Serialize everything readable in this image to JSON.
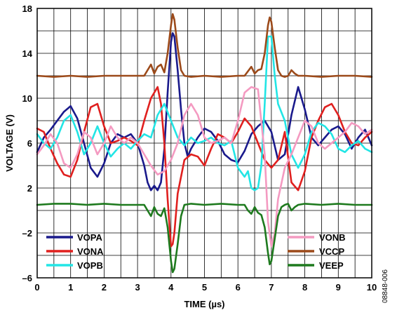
{
  "chart_data": {
    "type": "line",
    "xlabel": "TIME (µs)",
    "ylabel": "VOLTAGE (V)",
    "xlim": [
      0,
      10
    ],
    "ylim": [
      -6,
      18
    ],
    "xticks": [
      "0",
      "1",
      "2",
      "3",
      "4",
      "5",
      "6",
      "7",
      "8",
      "9",
      "10"
    ],
    "yticks": [
      "18",
      "14",
      "10",
      "6",
      "2",
      "–2",
      "–6"
    ],
    "ytick_values": [
      18,
      14,
      10,
      6,
      2,
      -2,
      -6
    ],
    "grid": true,
    "figure_id": "08848-006",
    "legend_left": [
      "VOPA",
      "VONA",
      "VOPB"
    ],
    "legend_right": [
      "VONB",
      "VCCP",
      "VEEP"
    ],
    "series": [
      {
        "name": "VOPA",
        "color": "#1a1a8c",
        "x": [
          0,
          0.2,
          0.4,
          0.6,
          0.8,
          1.0,
          1.2,
          1.4,
          1.6,
          1.8,
          2.0,
          2.2,
          2.4,
          2.6,
          2.8,
          3.0,
          3.2,
          3.3,
          3.4,
          3.5,
          3.6,
          3.7,
          3.8,
          3.9,
          4.0,
          4.05,
          4.1,
          4.2,
          4.3,
          4.4,
          4.5,
          4.6,
          4.8,
          5.0,
          5.2,
          5.4,
          5.6,
          5.8,
          6.0,
          6.2,
          6.4,
          6.6,
          6.8,
          7.0,
          7.2,
          7.4,
          7.6,
          7.8,
          8.0,
          8.2,
          8.4,
          8.6,
          8.8,
          9.0,
          9.2,
          9.4,
          9.6,
          9.8,
          10.0
        ],
        "y": [
          5.2,
          6.5,
          7.2,
          8.0,
          8.8,
          9.3,
          8.2,
          6.0,
          3.8,
          3.0,
          4.2,
          6.0,
          6.8,
          6.5,
          6.8,
          6.0,
          4.0,
          2.5,
          1.8,
          2.2,
          1.8,
          2.5,
          5.5,
          10.5,
          15.0,
          15.8,
          15.5,
          12.5,
          9.0,
          6.0,
          4.8,
          5.5,
          6.5,
          7.3,
          7.0,
          6.2,
          5.0,
          4.5,
          4.3,
          5.3,
          6.8,
          7.5,
          8.0,
          7.0,
          4.5,
          5.0,
          8.5,
          11.0,
          9.0,
          6.5,
          5.8,
          6.5,
          7.2,
          7.5,
          6.8,
          5.5,
          6.5,
          7.2,
          5.8
        ]
      },
      {
        "name": "VONA",
        "color": "#e0201f",
        "x": [
          0,
          0.2,
          0.4,
          0.6,
          0.8,
          1.0,
          1.2,
          1.4,
          1.6,
          1.8,
          2.0,
          2.2,
          2.4,
          2.6,
          2.8,
          3.0,
          3.2,
          3.4,
          3.6,
          3.7,
          3.8,
          3.9,
          4.0,
          4.05,
          4.1,
          4.2,
          4.4,
          4.6,
          4.8,
          5.0,
          5.2,
          5.4,
          5.6,
          5.8,
          6.0,
          6.2,
          6.4,
          6.6,
          6.8,
          7.0,
          7.2,
          7.4,
          7.6,
          7.8,
          8.0,
          8.2,
          8.4,
          8.6,
          8.8,
          9.0,
          9.2,
          9.4,
          9.6,
          9.8,
          10.0
        ],
        "y": [
          7.3,
          7.0,
          5.5,
          4.2,
          3.2,
          3.0,
          4.5,
          7.0,
          9.2,
          9.5,
          7.5,
          6.0,
          6.2,
          6.5,
          6.2,
          5.8,
          8.0,
          10.0,
          11.0,
          9.5,
          6.0,
          1.0,
          -3.2,
          -3.0,
          -2.0,
          1.5,
          4.5,
          5.0,
          4.8,
          4.0,
          5.5,
          6.8,
          6.5,
          6.0,
          7.0,
          8.2,
          7.5,
          6.0,
          4.5,
          3.8,
          4.5,
          7.0,
          2.5,
          1.8,
          3.5,
          6.5,
          8.0,
          9.2,
          9.5,
          8.5,
          7.0,
          6.0,
          5.8,
          6.5,
          7.0
        ]
      },
      {
        "name": "VOPB",
        "color": "#22e5e5",
        "x": [
          0,
          0.2,
          0.4,
          0.6,
          0.8,
          1.0,
          1.2,
          1.4,
          1.6,
          1.8,
          2.0,
          2.2,
          2.4,
          2.6,
          2.8,
          3.0,
          3.2,
          3.4,
          3.6,
          3.8,
          4.0,
          4.2,
          4.4,
          4.6,
          4.8,
          5.0,
          5.2,
          5.4,
          5.6,
          5.8,
          6.0,
          6.2,
          6.3,
          6.4,
          6.5,
          6.6,
          6.7,
          6.8,
          6.9,
          7.0,
          7.1,
          7.2,
          7.4,
          7.6,
          7.8,
          8.0,
          8.2,
          8.4,
          8.6,
          8.8,
          9.0,
          9.2,
          9.4,
          9.6,
          9.8,
          10.0
        ],
        "y": [
          6.8,
          6.0,
          5.5,
          6.5,
          8.0,
          8.5,
          7.0,
          5.0,
          6.0,
          7.5,
          6.0,
          4.8,
          5.5,
          6.0,
          5.5,
          6.2,
          6.8,
          6.5,
          8.5,
          9.5,
          8.0,
          6.5,
          5.8,
          6.5,
          6.0,
          6.2,
          6.5,
          6.0,
          5.8,
          6.2,
          3.8,
          3.0,
          3.5,
          2.0,
          1.8,
          2.0,
          4.0,
          9.5,
          15.5,
          15.5,
          12.0,
          9.5,
          8.0,
          5.0,
          3.8,
          5.0,
          7.0,
          7.8,
          7.5,
          6.8,
          5.5,
          5.2,
          5.8,
          6.2,
          5.5,
          5.2
        ]
      },
      {
        "name": "VONB",
        "color": "#f49ac1",
        "x": [
          0,
          0.2,
          0.4,
          0.6,
          0.8,
          1.0,
          1.2,
          1.4,
          1.6,
          1.8,
          2.0,
          2.2,
          2.4,
          2.6,
          2.8,
          3.0,
          3.2,
          3.4,
          3.6,
          3.8,
          4.0,
          4.2,
          4.4,
          4.6,
          4.8,
          5.0,
          5.2,
          5.4,
          5.6,
          5.8,
          6.0,
          6.2,
          6.4,
          6.6,
          6.8,
          6.9,
          7.0,
          7.1,
          7.2,
          7.4,
          7.6,
          7.8,
          8.0,
          8.2,
          8.4,
          8.6,
          8.8,
          9.0,
          9.2,
          9.4,
          9.6,
          9.8,
          10.0
        ],
        "y": [
          5.0,
          5.8,
          6.8,
          6.0,
          4.2,
          3.8,
          5.0,
          7.0,
          6.5,
          5.0,
          6.0,
          7.5,
          6.5,
          6.0,
          6.5,
          6.0,
          5.0,
          4.0,
          3.2,
          3.5,
          4.5,
          6.0,
          8.5,
          9.5,
          8.5,
          6.5,
          6.0,
          6.2,
          6.5,
          6.0,
          8.0,
          10.5,
          11.0,
          10.8,
          5.0,
          -1.0,
          -3.2,
          -2.0,
          1.0,
          3.8,
          5.0,
          6.5,
          8.0,
          7.5,
          6.0,
          5.5,
          6.0,
          6.5,
          7.0,
          7.8,
          7.5,
          6.8,
          7.2
        ]
      },
      {
        "name": "VCCP",
        "color": "#9c4a1a",
        "x": [
          0,
          0.5,
          1.0,
          1.5,
          2.0,
          2.5,
          3.0,
          3.2,
          3.3,
          3.4,
          3.5,
          3.6,
          3.7,
          3.8,
          3.9,
          4.0,
          4.05,
          4.1,
          4.2,
          4.3,
          4.4,
          4.6,
          5.0,
          5.5,
          6.0,
          6.2,
          6.3,
          6.4,
          6.5,
          6.6,
          6.7,
          6.8,
          6.9,
          6.95,
          7.0,
          7.1,
          7.2,
          7.3,
          7.4,
          7.5,
          7.6,
          7.7,
          7.8,
          8.0,
          8.5,
          9.0,
          9.5,
          10.0
        ],
        "y": [
          12.0,
          11.9,
          12.0,
          11.9,
          12.0,
          12.0,
          12.0,
          12.0,
          12.5,
          13.0,
          12.2,
          12.8,
          13.0,
          12.3,
          14.0,
          16.5,
          17.5,
          17.0,
          14.5,
          12.5,
          12.0,
          11.9,
          12.0,
          11.9,
          12.0,
          12.0,
          12.4,
          12.8,
          12.2,
          12.5,
          12.6,
          14.0,
          16.5,
          17.2,
          16.8,
          14.5,
          12.5,
          12.0,
          11.9,
          12.0,
          12.5,
          12.2,
          12.0,
          12.0,
          11.9,
          12.0,
          12.0,
          11.9
        ]
      },
      {
        "name": "VEEP",
        "color": "#1e7a1e",
        "x": [
          0,
          0.5,
          1.0,
          1.5,
          2.0,
          2.5,
          3.0,
          3.2,
          3.3,
          3.4,
          3.5,
          3.6,
          3.7,
          3.8,
          3.9,
          4.0,
          4.05,
          4.1,
          4.2,
          4.3,
          4.4,
          4.6,
          5.0,
          5.5,
          6.0,
          6.2,
          6.3,
          6.4,
          6.5,
          6.6,
          6.7,
          6.8,
          6.9,
          6.95,
          7.0,
          7.1,
          7.2,
          7.3,
          7.4,
          7.5,
          7.6,
          7.7,
          7.8,
          8.0,
          8.5,
          9.0,
          9.5,
          10.0
        ],
        "y": [
          0.5,
          0.6,
          0.6,
          0.5,
          0.6,
          0.5,
          0.5,
          0.5,
          0.0,
          -0.5,
          0.3,
          -0.3,
          -0.5,
          0.2,
          -1.5,
          -4.5,
          -5.5,
          -5.2,
          -3.0,
          -0.5,
          0.5,
          0.6,
          0.5,
          0.6,
          0.5,
          0.5,
          0.0,
          -0.3,
          0.3,
          -0.2,
          -0.4,
          -1.5,
          -3.8,
          -4.8,
          -4.5,
          -2.5,
          -0.5,
          0.3,
          0.5,
          0.6,
          0.0,
          0.3,
          0.5,
          0.6,
          0.5,
          0.6,
          0.5,
          0.5
        ]
      }
    ]
  }
}
